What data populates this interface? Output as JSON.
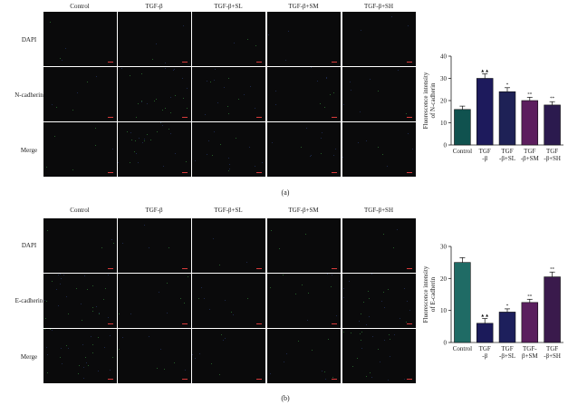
{
  "panels": [
    {
      "id": "a",
      "caption": "(a)",
      "columns": [
        "Control",
        "TGF-β",
        "TGF-β+SL",
        "TGF-β+SM",
        "TGF-β+SH"
      ],
      "rows": [
        "DAPI",
        "N-cadherin",
        "Merge"
      ]
    },
    {
      "id": "b",
      "caption": "(b)",
      "columns": [
        "Control",
        "TGF-β",
        "TGF-β+SL",
        "TGF-β+SM",
        "TGF-β+SH"
      ],
      "rows": [
        "DAPI",
        "E-cadherin",
        "Merge"
      ]
    }
  ],
  "colors": {
    "tile_background": "#0a0a0b",
    "scale_bar": "#d83b3b",
    "bar_control": "#10524f",
    "bar_tgf": "#1d1a5c",
    "bar_sl": "#1e2156",
    "bar_sm": "#5c1e5e",
    "bar_sh": "#2b1a4e",
    "bar_control_b": "#1f6b65",
    "bar_tgf_b": "#1b1a5a",
    "bar_sl_b": "#1d1f5c",
    "bar_sm_b": "#5a1f5e",
    "bar_sh_b": "#3a1a4c"
  },
  "chart_data": [
    {
      "type": "bar",
      "panel": "a",
      "categories": [
        "Control",
        "TGF\n-β",
        "TGF\n-β+SL",
        "TGF\n-β+SM",
        "TGF\n-β+SH"
      ],
      "values": [
        16,
        30,
        24,
        20,
        18
      ],
      "errors": [
        1.5,
        2.0,
        1.8,
        1.5,
        1.5
      ],
      "annotations": [
        "",
        "▲▲",
        "*",
        "**",
        "**"
      ],
      "ylabel": "Fluorescence intensity\nof N-cadherin",
      "ylim": [
        0,
        40
      ],
      "yticks": [
        0,
        10,
        20,
        30,
        40
      ],
      "grid": false
    },
    {
      "type": "bar",
      "panel": "b",
      "categories": [
        "Control",
        "TGF\n-β",
        "TGF\n-β+SL",
        "TGF-\nβ+SM",
        "TGF\n-β+SH"
      ],
      "values": [
        25,
        6,
        9.5,
        12.5,
        20.5
      ],
      "errors": [
        1.5,
        1.5,
        1.0,
        1.0,
        1.5
      ],
      "annotations": [
        "",
        "▲▲",
        "*",
        "**",
        "**"
      ],
      "ylabel": "Fluorescence intensity\nof E-cadherin",
      "ylim": [
        0,
        30
      ],
      "yticks": [
        0,
        10,
        20,
        30
      ],
      "grid": false
    }
  ]
}
